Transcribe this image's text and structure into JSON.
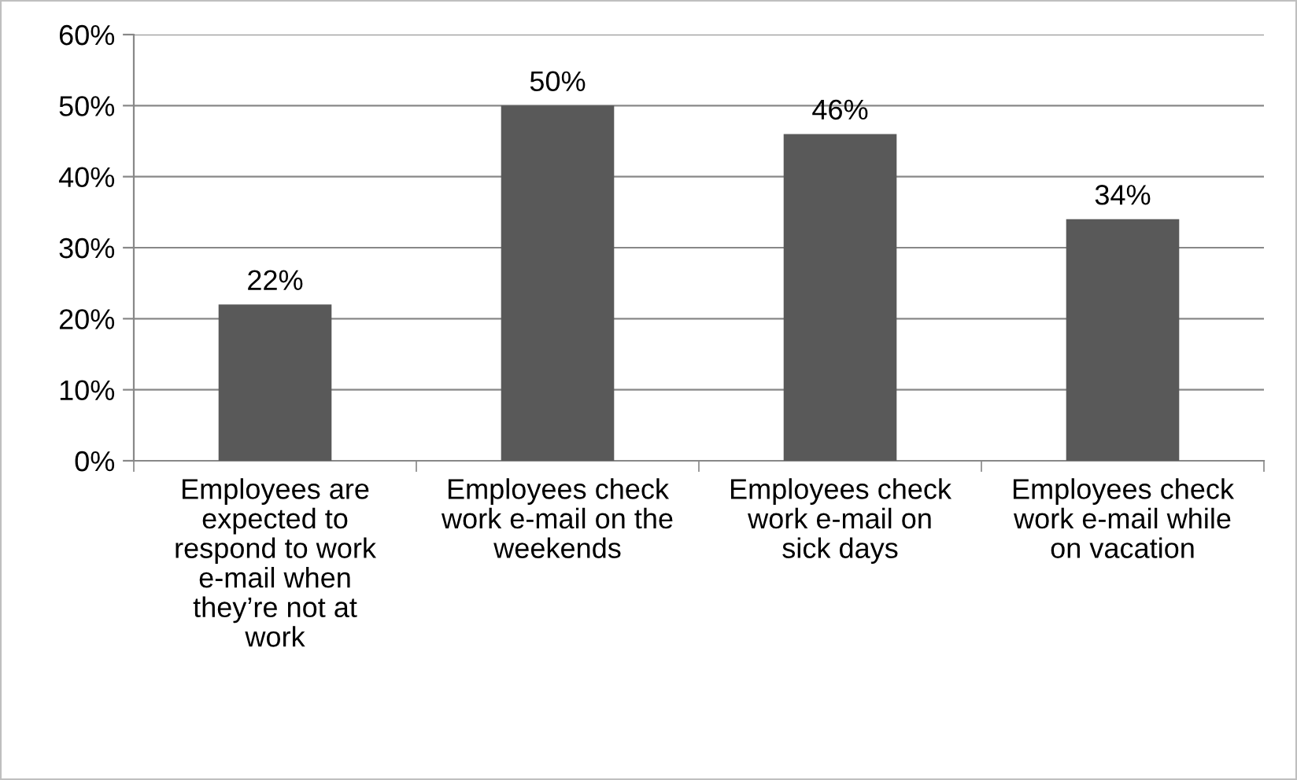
{
  "chart_data": {
    "type": "bar",
    "categories": [
      "Employees are\nexpected to\nrespond to work\ne-mail when\nthey’re not at\nwork",
      "Employees check\nwork e-mail on the\nweekends",
      "Employees check\nwork e-mail on\nsick days",
      "Employees check\nwork e-mail while\non vacation"
    ],
    "values": [
      22,
      50,
      46,
      34
    ],
    "value_labels": [
      "22%",
      "50%",
      "46%",
      "34%"
    ],
    "color": "#595959",
    "ylim": [
      0,
      60
    ],
    "yticks": [
      {
        "value": 0,
        "label": "0%"
      },
      {
        "value": 10,
        "label": "10%"
      },
      {
        "value": 20,
        "label": "20%"
      },
      {
        "value": 30,
        "label": "30%"
      },
      {
        "value": 40,
        "label": "40%"
      },
      {
        "value": 50,
        "label": "50%"
      },
      {
        "value": 60,
        "label": "60%"
      }
    ],
    "grid": "y",
    "legend": false
  }
}
